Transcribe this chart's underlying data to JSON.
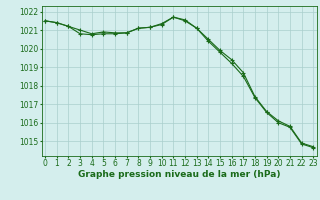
{
  "line1": [
    1021.5,
    1021.4,
    1021.2,
    1021.0,
    1020.8,
    1020.9,
    1020.85,
    1020.85,
    1021.1,
    1021.15,
    1021.3,
    1021.7,
    1021.5,
    1021.1,
    1020.5,
    1019.9,
    1019.4,
    1018.7,
    1017.4,
    1016.6,
    1016.1,
    1015.8,
    1014.9,
    1014.7
  ],
  "line2": [
    1021.5,
    1021.4,
    1021.2,
    1020.8,
    1020.75,
    1020.8,
    1020.8,
    1020.85,
    1021.1,
    1021.15,
    1021.35,
    1021.7,
    1021.55,
    1021.1,
    1020.4,
    1019.8,
    1019.2,
    1018.5,
    1017.35,
    1016.55,
    1016.0,
    1015.75,
    1014.85,
    1014.65
  ],
  "x": [
    0,
    1,
    2,
    3,
    4,
    5,
    6,
    7,
    8,
    9,
    10,
    11,
    12,
    13,
    14,
    15,
    16,
    17,
    18,
    19,
    20,
    21,
    22,
    23
  ],
  "line_color": "#1a6b1a",
  "bg_color": "#d4eeed",
  "grid_color": "#aacfcc",
  "xlabel": "Graphe pression niveau de la mer (hPa)",
  "ylim_min": 1014.2,
  "ylim_max": 1022.3,
  "yticks": [
    1015,
    1016,
    1017,
    1018,
    1019,
    1020,
    1021,
    1022
  ],
  "xlabel_fontsize": 6.5,
  "tick_fontsize": 5.5
}
